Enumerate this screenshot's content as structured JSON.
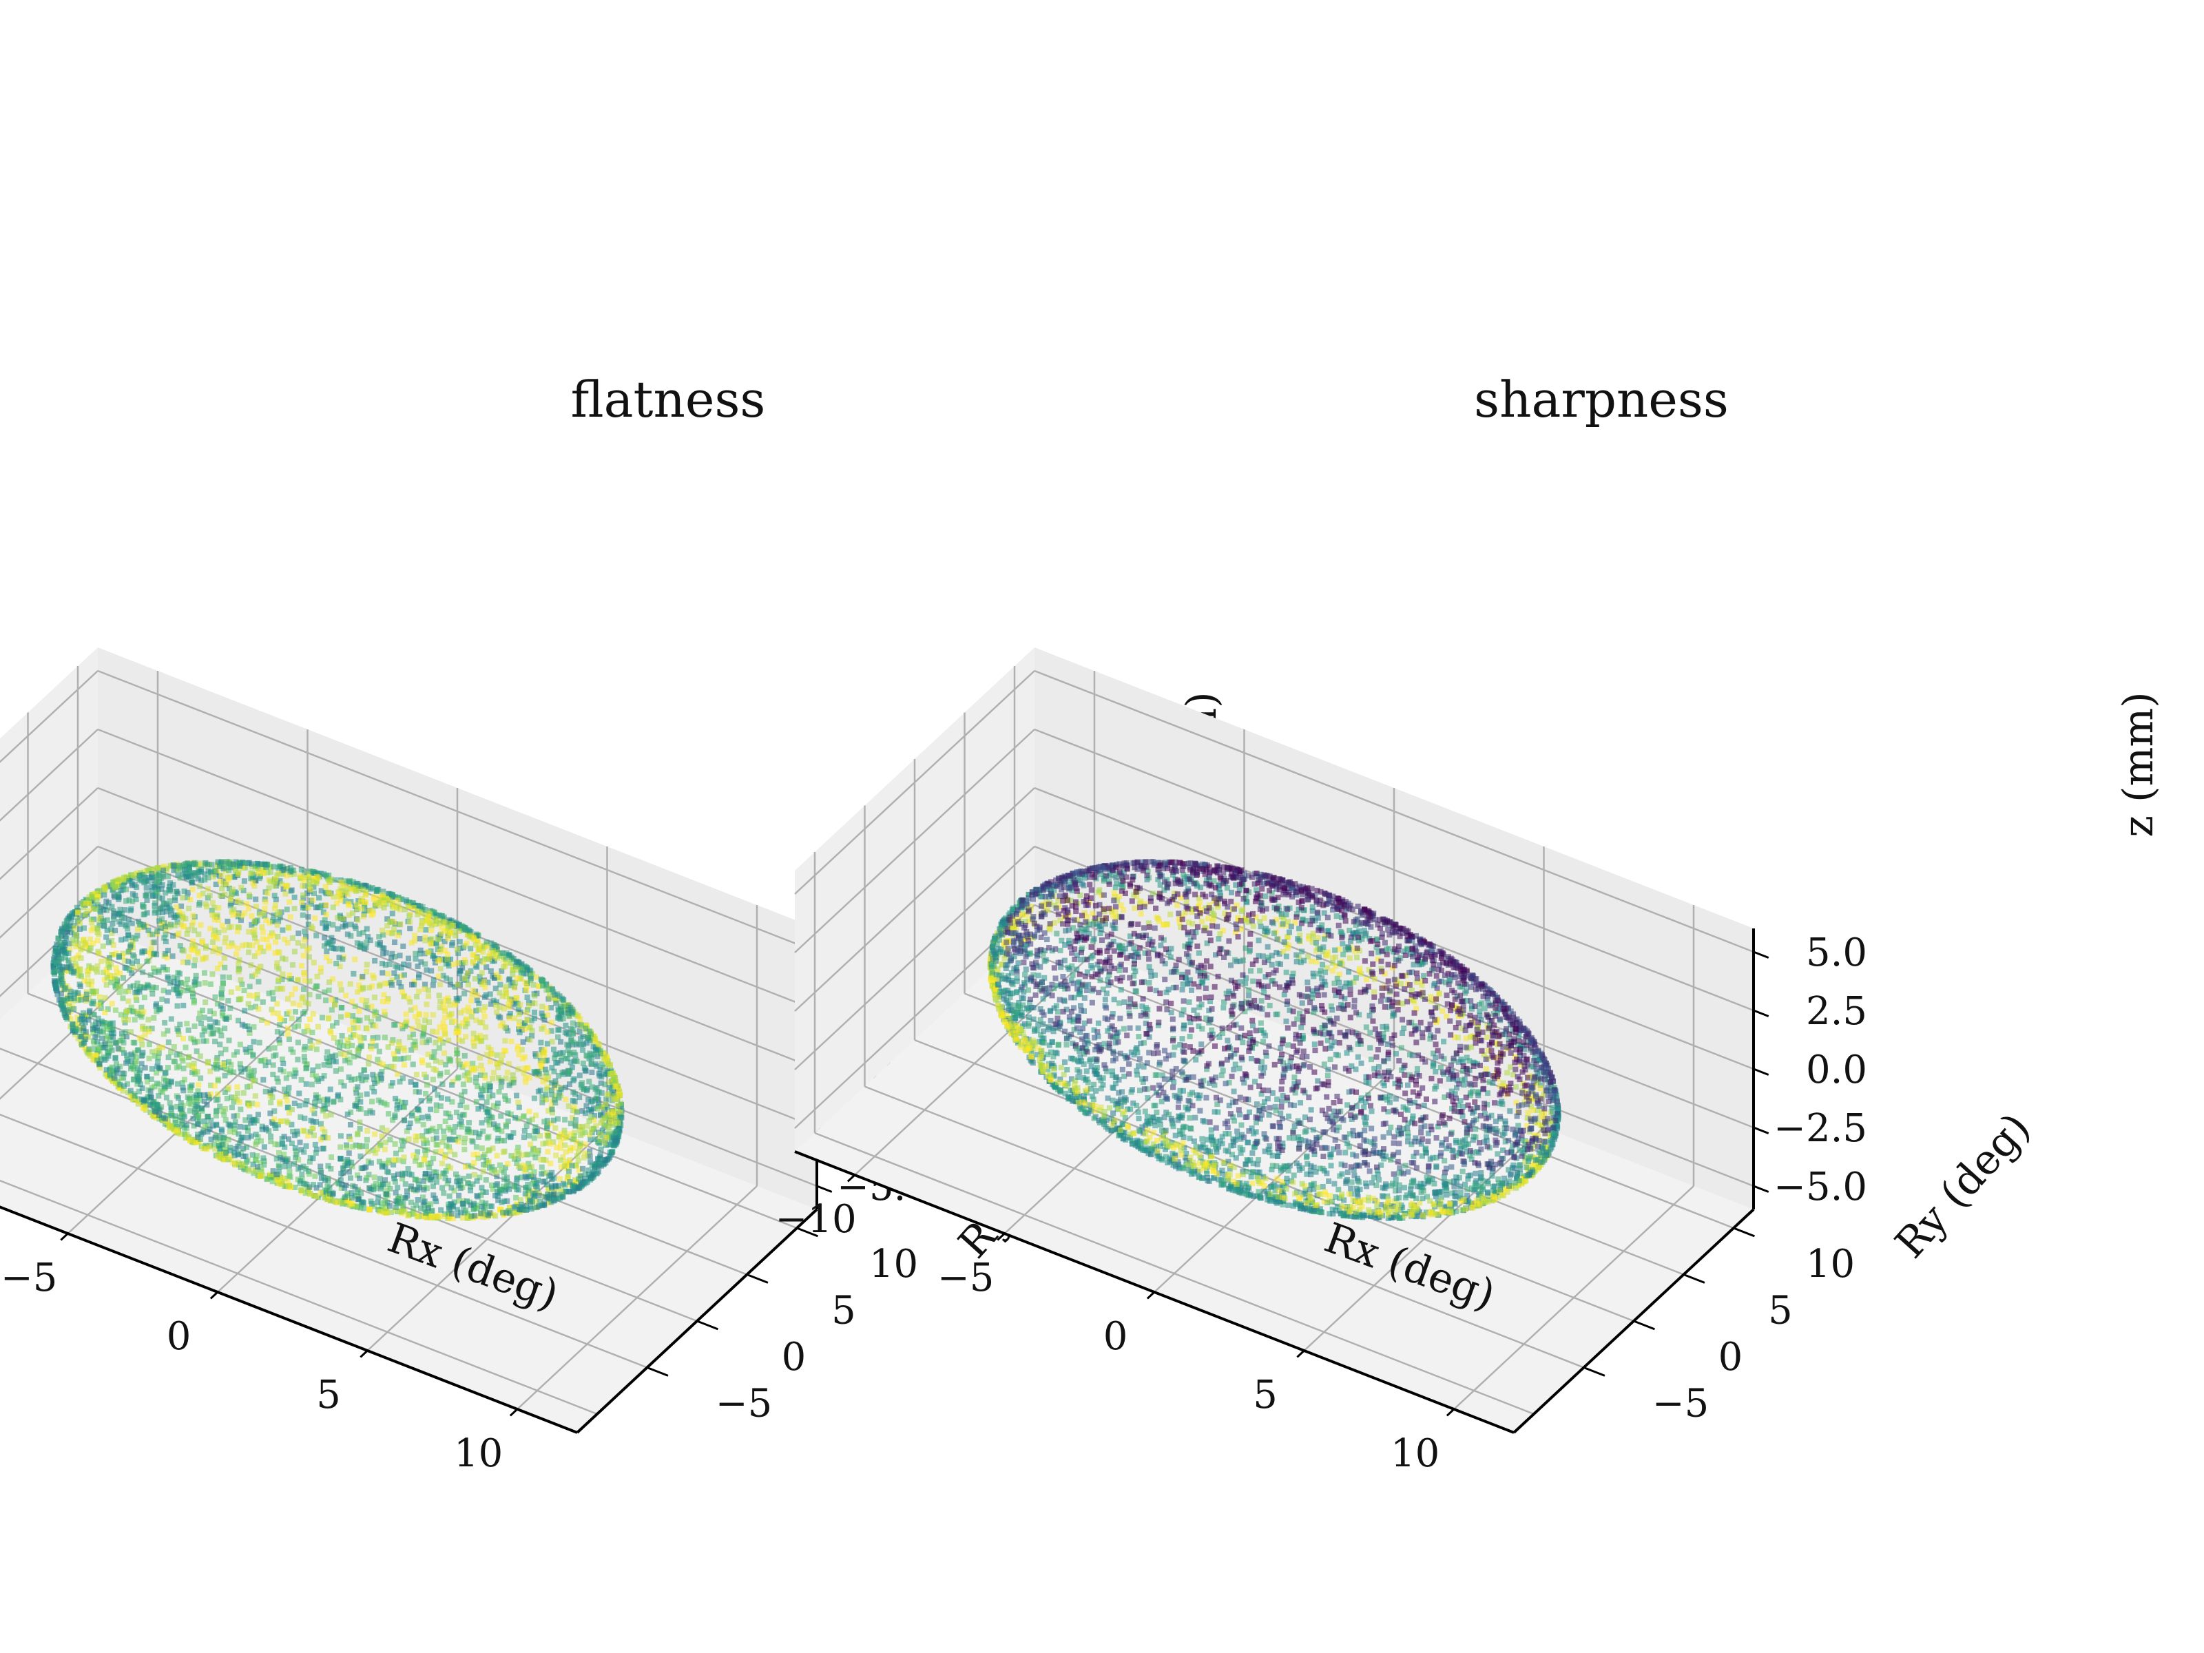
{
  "figure": {
    "colormap": [
      "#440154",
      "#3b528b",
      "#21918c",
      "#5ec962",
      "#fde725"
    ],
    "pane_color": "#f2f2f2",
    "grid_color": "#b0b0b0"
  },
  "chart_data": [
    {
      "type": "scatter3d",
      "title": "flatness",
      "xlabel": "Rx (deg)",
      "ylabel": "Ry (deg)",
      "zlabel": "z (mm)",
      "xlim": [
        -12,
        12
      ],
      "ylim": [
        -12,
        12
      ],
      "zlim": [
        -6,
        6
      ],
      "x_ticks": [
        "−10",
        "−5",
        "0",
        "5",
        "10"
      ],
      "y_ticks": [
        "−5",
        "0",
        "5",
        "10"
      ],
      "z_ticks": [
        "−5.0",
        "−2.5",
        "0.0",
        "2.5",
        "5.0"
      ],
      "point_cloud": "sphere",
      "sphere_radius_deg": 9,
      "bands": [
        {
          "z_from": 0.75,
          "z_to": 1.0,
          "color_level": 0.95
        },
        {
          "z_from": 0.45,
          "z_to": 0.75,
          "color_level": 0.55
        },
        {
          "z_from": 0.2,
          "z_to": 0.45,
          "color_level": 0.9
        },
        {
          "z_from": -0.35,
          "z_to": 0.2,
          "color_level": 0.5
        },
        {
          "z_from": -0.6,
          "z_to": -0.35,
          "color_level": 0.95
        },
        {
          "z_from": -1.0,
          "z_to": -0.6,
          "color_level": 0.7
        }
      ]
    },
    {
      "type": "scatter3d",
      "title": "sharpness",
      "xlabel": "Rx (deg)",
      "ylabel": "Ry (deg)",
      "zlabel": "z (mm)",
      "xlim": [
        -12,
        12
      ],
      "ylim": [
        -12,
        12
      ],
      "zlim": [
        -6,
        6
      ],
      "x_ticks": [
        "−10",
        "−5",
        "0",
        "5",
        "10"
      ],
      "y_ticks": [
        "−5",
        "0",
        "5",
        "10"
      ],
      "z_ticks": [
        "−5.0",
        "−2.5",
        "0.0",
        "2.5",
        "5.0"
      ],
      "point_cloud": "sphere",
      "sphere_radius_deg": 9,
      "bands": [
        {
          "z_from": 0.55,
          "z_to": 1.0,
          "color_level": 0.05
        },
        {
          "z_from": 0.2,
          "z_to": 0.55,
          "color_level": 0.2
        },
        {
          "z_from": -0.05,
          "z_to": 0.2,
          "color_level": 0.5
        },
        {
          "z_from": -0.35,
          "z_to": -0.05,
          "color_level": 0.95
        },
        {
          "z_from": -1.0,
          "z_to": -0.35,
          "color_level": 0.5
        }
      ]
    }
  ]
}
